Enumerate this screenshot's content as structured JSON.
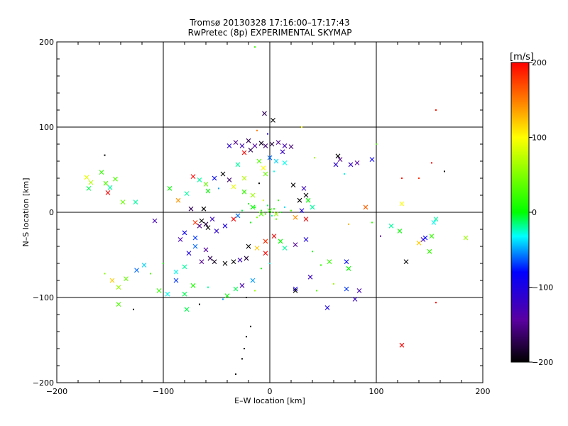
{
  "chart_data": {
    "type": "scatter",
    "title": "Tromsø 20130328 17:16:00–17:17:43",
    "subtitle": "RwPretec (8p) EXPERIMENTAL SKYMAP",
    "xlabel": "E–W location [km]",
    "ylabel": "N–S location [km]",
    "xlim": [
      -200,
      200
    ],
    "ylim": [
      -200,
      200
    ],
    "xticks": [
      "−200",
      "−100",
      "0",
      "100",
      "200"
    ],
    "yticks": [
      "−200",
      "−100",
      "0",
      "100",
      "200"
    ],
    "xtick_values": [
      -200,
      -100,
      0,
      100,
      200
    ],
    "ytick_values": [
      -200,
      -100,
      0,
      100,
      200
    ],
    "grid": true,
    "colorbar": {
      "unit": "[m/s]",
      "range": [
        -200,
        200
      ],
      "ticks": [
        "200",
        "100",
        "0",
        "−100",
        "−200"
      ],
      "tick_values": [
        200,
        100,
        0,
        -100,
        -200
      ],
      "colors": [
        "#000000",
        "#5a00a0",
        "#0000ff",
        "#00ffff",
        "#00ff00",
        "#ffff00",
        "#ff8000",
        "#ff0000"
      ]
    },
    "markers": {
      "cross": "x",
      "dot": "."
    },
    "points": [
      [
        -172,
        41,
        90,
        "x"
      ],
      [
        -168,
        35,
        70,
        "x"
      ],
      [
        -158,
        47,
        20,
        "x"
      ],
      [
        -154,
        34,
        30,
        "x"
      ],
      [
        -152,
        23,
        200,
        "x"
      ],
      [
        -150,
        29,
        -20,
        "x"
      ],
      [
        -145,
        39,
        30,
        "x"
      ],
      [
        -138,
        12,
        40,
        "x"
      ],
      [
        -126,
        12,
        -20,
        "x"
      ],
      [
        -155,
        67,
        -200,
        "."
      ],
      [
        -170,
        28,
        -10,
        "x"
      ],
      [
        -142,
        -88,
        60,
        "x"
      ],
      [
        -142,
        -108,
        30,
        "x"
      ],
      [
        -148,
        -80,
        120,
        "x"
      ],
      [
        -135,
        -78,
        40,
        "x"
      ],
      [
        -125,
        -68,
        -60,
        "x"
      ],
      [
        -118,
        -62,
        -40,
        "x"
      ],
      [
        -112,
        -72,
        30,
        "."
      ],
      [
        -104,
        -92,
        20,
        "x"
      ],
      [
        -96,
        -96,
        -30,
        "x"
      ],
      [
        -88,
        -80,
        -70,
        "x"
      ],
      [
        -80,
        -96,
        -10,
        "x"
      ],
      [
        -72,
        -86,
        10,
        "x"
      ],
      [
        -78,
        -114,
        -10,
        "x"
      ],
      [
        -128,
        -114,
        -200,
        "."
      ],
      [
        -155,
        -72,
        50,
        "."
      ],
      [
        -100,
        -60,
        10,
        "."
      ],
      [
        -32,
        82,
        -150,
        "x"
      ],
      [
        -26,
        78,
        -120,
        "x"
      ],
      [
        -20,
        84,
        -170,
        "x"
      ],
      [
        -14,
        78,
        -140,
        "x"
      ],
      [
        -8,
        81,
        -190,
        "x"
      ],
      [
        -4,
        78,
        -160,
        "x"
      ],
      [
        2,
        80,
        -180,
        "x"
      ],
      [
        8,
        82,
        -150,
        "x"
      ],
      [
        14,
        78,
        -130,
        "x"
      ],
      [
        -38,
        78,
        -110,
        "x"
      ],
      [
        -24,
        70,
        200,
        "x"
      ],
      [
        -18,
        73,
        -170,
        "x"
      ],
      [
        -5,
        116,
        -170,
        "x"
      ],
      [
        3,
        108,
        -200,
        "x"
      ],
      [
        -12,
        96,
        150,
        "."
      ],
      [
        -2,
        92,
        -100,
        "."
      ],
      [
        12,
        71,
        -120,
        "x"
      ],
      [
        20,
        77,
        -160,
        "x"
      ],
      [
        30,
        100,
        100,
        "."
      ],
      [
        -10,
        60,
        30,
        "x"
      ],
      [
        0,
        64,
        -60,
        "x"
      ],
      [
        6,
        60,
        -40,
        "x"
      ],
      [
        14,
        58,
        -30,
        "x"
      ],
      [
        -6,
        52,
        100,
        "x"
      ],
      [
        -4,
        45,
        40,
        "x"
      ],
      [
        4,
        48,
        -30,
        "."
      ],
      [
        -30,
        56,
        -20,
        "x"
      ],
      [
        64,
        66,
        -200,
        "x"
      ],
      [
        66,
        62,
        -150,
        "x"
      ],
      [
        62,
        56,
        -110,
        "x"
      ],
      [
        82,
        58,
        -140,
        "x"
      ],
      [
        76,
        56,
        -120,
        "x"
      ],
      [
        96,
        62,
        -90,
        "x"
      ],
      [
        70,
        45,
        -30,
        "."
      ],
      [
        42,
        64,
        60,
        "."
      ],
      [
        -72,
        42,
        200,
        "x"
      ],
      [
        -66,
        38,
        -20,
        "x"
      ],
      [
        -60,
        33,
        40,
        "x"
      ],
      [
        -52,
        40,
        -80,
        "x"
      ],
      [
        -44,
        45,
        -200,
        "x"
      ],
      [
        -38,
        38,
        -160,
        "x"
      ],
      [
        -78,
        22,
        -20,
        "x"
      ],
      [
        -86,
        14,
        140,
        "x"
      ],
      [
        -58,
        25,
        0,
        "x"
      ],
      [
        -48,
        28,
        -50,
        "."
      ],
      [
        -24,
        24,
        20,
        "x"
      ],
      [
        -16,
        20,
        60,
        "x"
      ],
      [
        -10,
        34,
        -200,
        "."
      ],
      [
        -20,
        10,
        10,
        "."
      ],
      [
        -14,
        6,
        0,
        "."
      ],
      [
        -8,
        2,
        20,
        "."
      ],
      [
        -2,
        8,
        -10,
        "."
      ],
      [
        4,
        4,
        10,
        "."
      ],
      [
        10,
        0,
        0,
        "."
      ],
      [
        -4,
        -2,
        30,
        "."
      ],
      [
        2,
        -4,
        -20,
        "."
      ],
      [
        -12,
        -6,
        50,
        "."
      ],
      [
        6,
        -8,
        40,
        "."
      ],
      [
        14,
        6,
        -40,
        "."
      ],
      [
        20,
        2,
        30,
        "."
      ],
      [
        -26,
        2,
        -10,
        "."
      ],
      [
        -6,
        14,
        80,
        "."
      ],
      [
        8,
        14,
        20,
        "."
      ],
      [
        -18,
        -12,
        0,
        "."
      ],
      [
        24,
        -6,
        140,
        "x"
      ],
      [
        34,
        -8,
        200,
        "x"
      ],
      [
        30,
        2,
        -100,
        "x"
      ],
      [
        40,
        6,
        -20,
        "x"
      ],
      [
        36,
        14,
        0,
        "x"
      ],
      [
        28,
        14,
        -200,
        "x"
      ],
      [
        34,
        20,
        -200,
        "x"
      ],
      [
        22,
        32,
        -200,
        "x"
      ],
      [
        32,
        28,
        -120,
        "x"
      ],
      [
        -64,
        -10,
        -200,
        "x"
      ],
      [
        -60,
        -14,
        -180,
        "x"
      ],
      [
        -66,
        -16,
        -150,
        "x"
      ],
      [
        -58,
        -18,
        -200,
        "x"
      ],
      [
        -70,
        -12,
        180,
        "x"
      ],
      [
        -54,
        -8,
        -120,
        "x"
      ],
      [
        -62,
        4,
        -200,
        "x"
      ],
      [
        -74,
        4,
        -170,
        "x"
      ],
      [
        -80,
        -24,
        -90,
        "x"
      ],
      [
        -84,
        -32,
        -130,
        "x"
      ],
      [
        -70,
        -30,
        -70,
        "x"
      ],
      [
        -50,
        -22,
        -110,
        "x"
      ],
      [
        -42,
        -16,
        -100,
        "x"
      ],
      [
        -34,
        -8,
        200,
        "x"
      ],
      [
        -30,
        -4,
        -60,
        "x"
      ],
      [
        -42,
        -60,
        -200,
        "x"
      ],
      [
        -52,
        -58,
        -190,
        "x"
      ],
      [
        -56,
        -54,
        -170,
        "x"
      ],
      [
        -64,
        -58,
        -150,
        "x"
      ],
      [
        -34,
        -58,
        -200,
        "x"
      ],
      [
        -28,
        -56,
        -120,
        "x"
      ],
      [
        -22,
        -54,
        -180,
        "x"
      ],
      [
        -76,
        -48,
        -100,
        "x"
      ],
      [
        -70,
        -40,
        -60,
        "x"
      ],
      [
        -60,
        -44,
        -140,
        "x"
      ],
      [
        -88,
        -70,
        -30,
        "x"
      ],
      [
        -80,
        -64,
        -20,
        "x"
      ],
      [
        -12,
        -42,
        120,
        "x"
      ],
      [
        -20,
        -40,
        -200,
        "x"
      ],
      [
        -4,
        -34,
        180,
        "x"
      ],
      [
        4,
        -28,
        200,
        "x"
      ],
      [
        10,
        -34,
        0,
        "x"
      ],
      [
        14,
        -42,
        -20,
        "x"
      ],
      [
        24,
        -38,
        -150,
        "x"
      ],
      [
        34,
        -32,
        -100,
        "x"
      ],
      [
        40,
        -46,
        10,
        "."
      ],
      [
        -4,
        -48,
        200,
        "x"
      ],
      [
        0,
        -60,
        -30,
        "."
      ],
      [
        -8,
        -66,
        10,
        "."
      ],
      [
        -16,
        -80,
        -50,
        "x"
      ],
      [
        -26,
        -86,
        -130,
        "x"
      ],
      [
        -32,
        -90,
        -10,
        "x"
      ],
      [
        -40,
        -98,
        0,
        "x"
      ],
      [
        -22,
        -100,
        -200,
        "."
      ],
      [
        -14,
        -92,
        60,
        "."
      ],
      [
        -18,
        -134,
        -200,
        "."
      ],
      [
        -22,
        -146,
        -200,
        "."
      ],
      [
        -24,
        -160,
        -200,
        "."
      ],
      [
        -26,
        -172,
        -200,
        "."
      ],
      [
        -32,
        -190,
        -200,
        "."
      ],
      [
        -44,
        -102,
        -50,
        "."
      ],
      [
        -58,
        -88,
        -20,
        "."
      ],
      [
        -66,
        -108,
        -200,
        "."
      ],
      [
        -14,
        194,
        20,
        "."
      ],
      [
        24,
        -90,
        -100,
        "x"
      ],
      [
        38,
        -76,
        -120,
        "x"
      ],
      [
        56,
        -58,
        20,
        "x"
      ],
      [
        72,
        -58,
        -80,
        "x"
      ],
      [
        74,
        -66,
        0,
        "x"
      ],
      [
        54,
        -112,
        -100,
        "x"
      ],
      [
        72,
        -90,
        -70,
        "x"
      ],
      [
        84,
        -92,
        -130,
        "x"
      ],
      [
        80,
        -102,
        -120,
        "x"
      ],
      [
        60,
        -84,
        60,
        "."
      ],
      [
        44,
        -92,
        30,
        "."
      ],
      [
        24,
        -92,
        -200,
        "x"
      ],
      [
        48,
        -62,
        20,
        "."
      ],
      [
        124,
        -156,
        200,
        "x"
      ],
      [
        128,
        -58,
        -200,
        "x"
      ],
      [
        140,
        -36,
        120,
        "x"
      ],
      [
        144,
        -32,
        -120,
        "x"
      ],
      [
        146,
        -30,
        -80,
        "x"
      ],
      [
        150,
        -46,
        20,
        "x"
      ],
      [
        152,
        -28,
        20,
        "x"
      ],
      [
        156,
        -8,
        -20,
        "x"
      ],
      [
        154,
        -12,
        -30,
        "x"
      ],
      [
        184,
        -30,
        60,
        "x"
      ],
      [
        114,
        -16,
        -20,
        "x"
      ],
      [
        122,
        -22,
        0,
        "x"
      ],
      [
        96,
        -12,
        20,
        "."
      ],
      [
        104,
        -28,
        -150,
        "."
      ],
      [
        90,
        6,
        160,
        "x"
      ],
      [
        74,
        -14,
        130,
        "."
      ],
      [
        124,
        10,
        100,
        "x"
      ],
      [
        124,
        40,
        190,
        "."
      ],
      [
        140,
        40,
        180,
        "."
      ],
      [
        152,
        58,
        200,
        "."
      ],
      [
        156,
        120,
        190,
        "."
      ],
      [
        164,
        48,
        -200,
        "."
      ],
      [
        156,
        -106,
        200,
        "."
      ],
      [
        100,
        80,
        30,
        "."
      ],
      [
        -16,
        6,
        0,
        "x"
      ],
      [
        -8,
        -2,
        30,
        "x"
      ],
      [
        0,
        2,
        20,
        "x"
      ],
      [
        6,
        -2,
        60,
        "x"
      ],
      [
        -24,
        40,
        70,
        "x"
      ],
      [
        -34,
        30,
        90,
        "x"
      ],
      [
        -94,
        28,
        0,
        "x"
      ],
      [
        -108,
        -10,
        -130,
        "x"
      ]
    ]
  }
}
